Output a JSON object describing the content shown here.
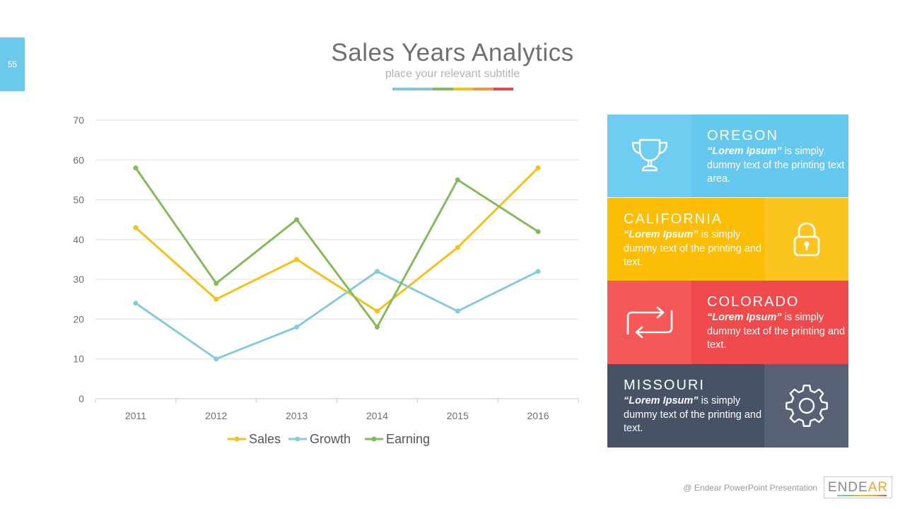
{
  "slide": {
    "page_number": "55",
    "title": "Sales Years Analytics",
    "subtitle": "place your relevant subtitle",
    "color_bar": [
      "#7ccbe4",
      "#8cc1dc",
      "#86b961",
      "#f2c01a",
      "#f0973a",
      "#e9454e"
    ]
  },
  "chart_data": {
    "type": "line",
    "categories": [
      "2011",
      "2012",
      "2013",
      "2014",
      "2015",
      "2016"
    ],
    "series": [
      {
        "name": "Sales",
        "color": "#f5bf1c",
        "values": [
          43,
          25,
          35,
          22,
          38,
          58
        ]
      },
      {
        "name": "Growth",
        "color": "#86cbd9",
        "values": [
          24,
          10,
          18,
          32,
          22,
          32
        ]
      },
      {
        "name": "Earning",
        "color": "#86b95c",
        "values": [
          58,
          29,
          45,
          18,
          55,
          42
        ]
      }
    ],
    "ylim": [
      0,
      70
    ],
    "yticks": [
      0,
      10,
      20,
      30,
      40,
      50,
      60,
      70
    ],
    "grid": true,
    "legend_position": "bottom"
  },
  "panels": [
    {
      "name": "OREGON",
      "bold": "“Lorem Ipsum”",
      "desc": " is simply dummy text of the printing text area.",
      "icon": "trophy-icon",
      "icon_color": "#6ecdf0",
      "text_color": "#65c8ee"
    },
    {
      "name": "CALIFORNIA",
      "bold": "“Lorem Ipsum”",
      "desc": " is simply dummy text of the printing and text.",
      "icon": "lock-icon",
      "icon_color": "#fcc41f",
      "text_color": "#fbbd05"
    },
    {
      "name": "COLORADO",
      "bold": "“Lorem Ipsum”",
      "desc": " is simply dummy text of the printing and text.",
      "icon": "repeat-icon",
      "icon_color": "#f65757",
      "text_color": "#f14a4c"
    },
    {
      "name": "MISSOURI",
      "bold": "“Lorem Ipsum”",
      "desc": " is simply dummy text of the printing and text.",
      "icon": "gear-icon",
      "icon_color": "#576075",
      "text_color": "#475266"
    }
  ],
  "footer": {
    "text": "@ Endear PowerPoint Presentation",
    "brand_main": "ENDE",
    "brand_accent": "AR"
  }
}
